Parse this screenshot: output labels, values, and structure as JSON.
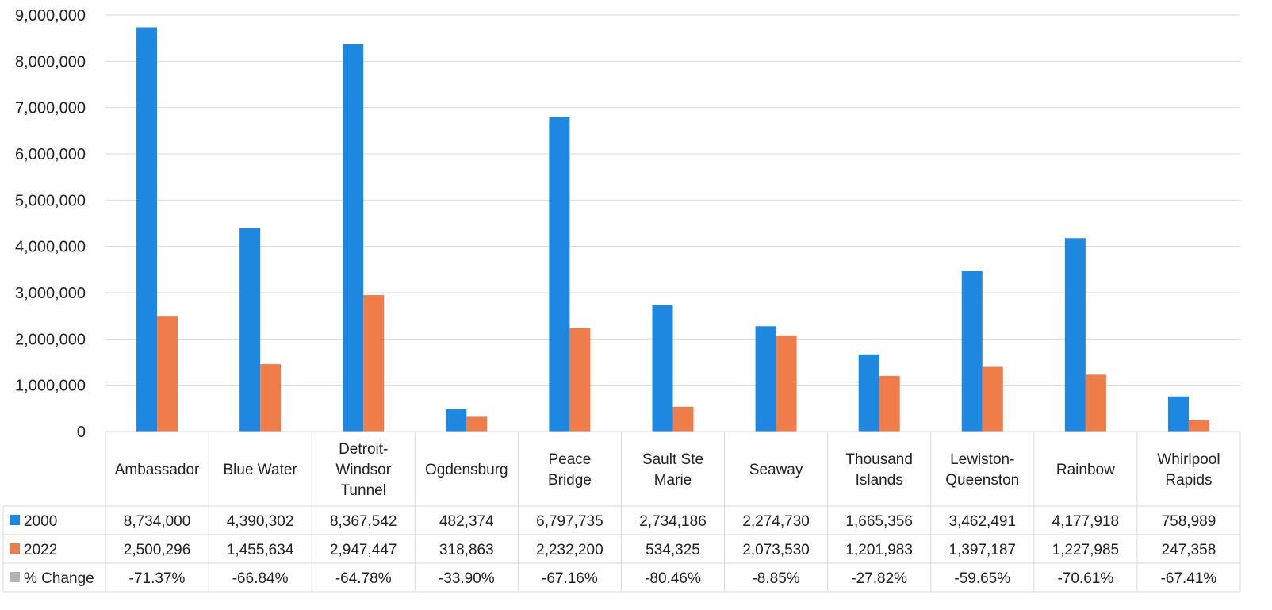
{
  "chart_data": {
    "type": "bar",
    "title": "",
    "xlabel": "",
    "ylabel": "",
    "ylim": [
      0,
      9000000
    ],
    "yticks": [
      0,
      1000000,
      2000000,
      3000000,
      4000000,
      5000000,
      6000000,
      7000000,
      8000000,
      9000000
    ],
    "ytick_labels": [
      "0",
      "1,000,000",
      "2,000,000",
      "3,000,000",
      "4,000,000",
      "5,000,000",
      "6,000,000",
      "7,000,000",
      "8,000,000",
      "9,000,000"
    ],
    "grid": true,
    "legend": "data-table",
    "categories": [
      [
        "Ambassador"
      ],
      [
        "Blue Water"
      ],
      [
        "Detroit-",
        "Windsor",
        "Tunnel"
      ],
      [
        "Ogdensburg"
      ],
      [
        "Peace",
        "Bridge"
      ],
      [
        "Sault Ste",
        "Marie"
      ],
      [
        "Seaway"
      ],
      [
        "Thousand",
        "Islands"
      ],
      [
        "Lewiston-",
        "Queenston"
      ],
      [
        "Rainbow"
      ],
      [
        "Whirlpool",
        "Rapids"
      ]
    ],
    "series": [
      {
        "name": "2000",
        "color": "#1e88e0",
        "values": [
          8734000,
          4390302,
          8367542,
          482374,
          6797735,
          2734186,
          2274730,
          1665356,
          3462491,
          4177918,
          758989
        ],
        "labels": [
          "8,734,000",
          "4,390,302",
          "8,367,542",
          "482,374",
          "6,797,735",
          "2,734,186",
          "2,274,730",
          "1,665,356",
          "3,462,491",
          "4,177,918",
          "758,989"
        ]
      },
      {
        "name": "2022",
        "color": "#ee7d4a",
        "values": [
          2500296,
          1455634,
          2947447,
          318863,
          2232200,
          534325,
          2073530,
          1201983,
          1397187,
          1227985,
          247358
        ],
        "labels": [
          "2,500,296",
          "1,455,634",
          "2,947,447",
          "318,863",
          "2,232,200",
          "534,325",
          "2,073,530",
          "1,201,983",
          "1,397,187",
          "1,227,985",
          "247,358"
        ]
      },
      {
        "name": "% Change",
        "color": "#b3b3b3",
        "values": [
          -71.37,
          -66.84,
          -64.78,
          -33.9,
          -67.16,
          -80.46,
          -8.85,
          -27.82,
          -59.65,
          -70.61,
          -67.41
        ],
        "labels": [
          "-71.37%",
          "-66.84%",
          "-64.78%",
          "-33.90%",
          "-67.16%",
          "-80.46%",
          "-8.85%",
          "-27.82%",
          "-59.65%",
          "-70.61%",
          "-67.41%"
        ],
        "plotted": false
      }
    ]
  }
}
